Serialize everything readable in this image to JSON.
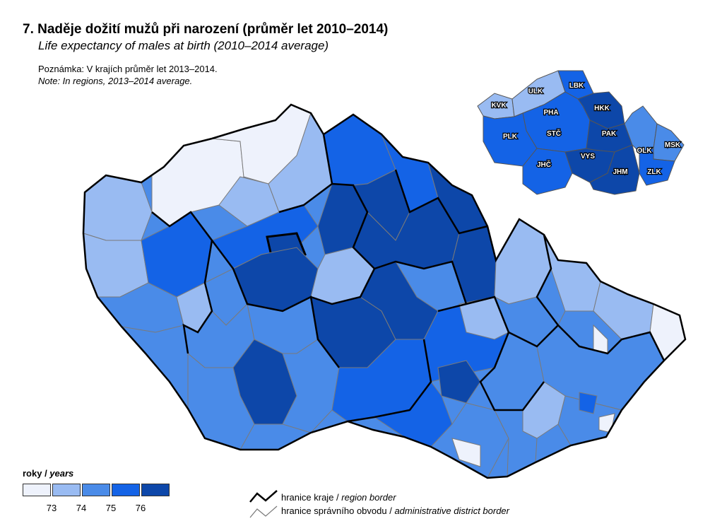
{
  "title": "7. Naděje dožití mužů při narození (průměr let 2010–2014)",
  "subtitle": "Life expectancy of males at birth (2010–2014 average)",
  "note_cz": "Poznámka: V krajích průměr let 2013–2014.",
  "note_en": "Note: In regions, 2013–2014 average.",
  "legend": {
    "title_cz": "roky / ",
    "title_en": "years",
    "ticks": [
      "73",
      "74",
      "75",
      "76"
    ],
    "colors": [
      "#eef2fc",
      "#99bbf2",
      "#4a8be8",
      "#1463e6",
      "#0d47a9"
    ],
    "region_border_cz": "hranice kraje / ",
    "region_border_en": "region border",
    "district_border_cz": "hranice správního obvodu / ",
    "district_border_en": "administrative district border"
  },
  "inset": {
    "regions": [
      {
        "code": "LBK",
        "class": 4
      },
      {
        "code": "ULK",
        "class": 1
      },
      {
        "code": "KVK",
        "class": 1
      },
      {
        "code": "HKK",
        "class": 4
      },
      {
        "code": "PHA",
        "class": 3
      },
      {
        "code": "STČ",
        "class": 3
      },
      {
        "code": "PLK",
        "class": 3
      },
      {
        "code": "PAK",
        "class": 4
      },
      {
        "code": "OLK",
        "class": 2
      },
      {
        "code": "MSK",
        "class": 2
      },
      {
        "code": "VYS",
        "class": 4
      },
      {
        "code": "JHČ",
        "class": 3
      },
      {
        "code": "JHM",
        "class": 4
      },
      {
        "code": "ZLK",
        "class": 3
      }
    ]
  }
}
